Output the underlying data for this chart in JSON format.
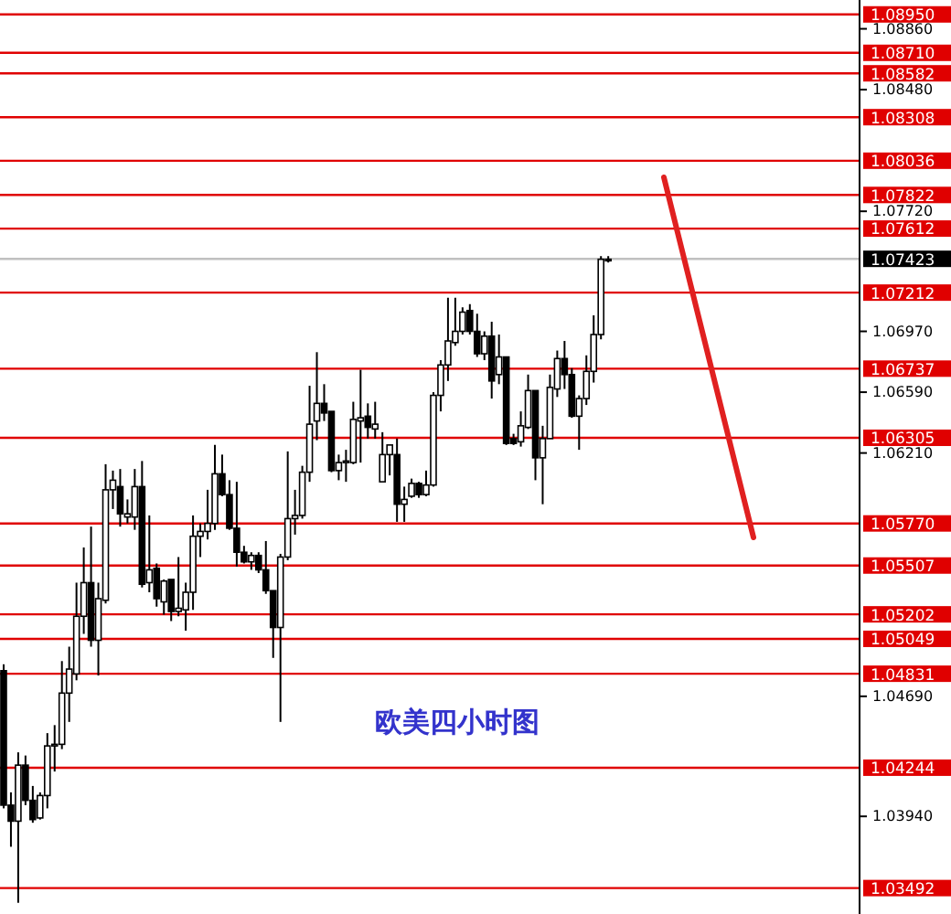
{
  "chart_data": {
    "type": "candlestick",
    "categories": [
      null,
      null,
      null,
      null,
      null,
      null,
      null,
      null,
      null,
      null,
      null,
      null,
      null,
      null,
      null,
      null,
      null,
      null,
      null,
      null,
      null,
      null,
      null,
      null,
      null,
      null,
      null,
      null,
      null,
      null,
      null,
      null,
      null,
      null,
      null,
      null,
      null,
      null,
      null,
      null,
      null,
      null,
      null,
      null,
      null,
      null,
      null,
      null,
      null,
      null,
      null,
      null,
      null,
      null,
      null,
      null,
      null,
      null,
      null,
      null,
      null,
      null,
      null,
      null,
      null,
      null,
      null,
      null,
      null,
      null,
      null,
      null,
      null,
      null,
      null,
      null,
      null,
      null,
      null,
      null,
      null,
      null,
      null,
      null,
      null,
      null,
      null,
      null,
      null,
      null,
      null,
      null,
      null,
      null,
      null,
      null,
      null,
      null,
      null,
      null,
      null,
      null,
      null,
      null,
      null,
      null,
      null,
      null,
      null,
      null,
      null,
      null,
      null,
      null,
      null,
      null,
      null,
      null
    ],
    "ohlc": [
      [
        1.0485,
        1.0489,
        1.0399,
        1.0401
      ],
      [
        1.0401,
        1.0409,
        1.0375,
        1.0391
      ],
      [
        1.0391,
        1.0434,
        1.034,
        1.0426
      ],
      [
        1.0426,
        1.0432,
        1.0401,
        1.0404
      ],
      [
        1.0404,
        1.0413,
        1.039,
        1.0392
      ],
      [
        1.0393,
        1.0409,
        1.0392,
        1.0407
      ],
      [
        1.0407,
        1.0446,
        1.0399,
        1.0438
      ],
      [
        1.0438,
        1.0451,
        1.0422,
        1.0439
      ],
      [
        1.0439,
        1.0491,
        1.0436,
        1.0471
      ],
      [
        1.0471,
        1.05,
        1.0453,
        1.0486
      ],
      [
        1.0483,
        1.054,
        1.0479,
        1.0519
      ],
      [
        1.0519,
        1.0562,
        1.0508,
        1.054
      ],
      [
        1.054,
        1.0575,
        1.05,
        1.0504
      ],
      [
        1.0504,
        1.054,
        1.0482,
        1.053
      ],
      [
        1.0529,
        1.0614,
        1.0527,
        1.0598
      ],
      [
        1.0598,
        1.061,
        1.0586,
        1.0604
      ],
      [
        1.06,
        1.0611,
        1.0575,
        1.0583
      ],
      [
        1.0581,
        1.0592,
        1.0577,
        1.0583
      ],
      [
        1.0581,
        1.0611,
        1.0573,
        1.06
      ],
      [
        1.06,
        1.0616,
        1.0537,
        1.0539
      ],
      [
        1.054,
        1.0582,
        1.0534,
        1.0548
      ],
      [
        1.0549,
        1.0552,
        1.0525,
        1.053
      ],
      [
        1.0528,
        1.0542,
        1.052,
        1.0541
      ],
      [
        1.0542,
        1.0542,
        1.0516,
        1.0522
      ],
      [
        1.0522,
        1.0556,
        1.0519,
        1.0524
      ],
      [
        1.0523,
        1.054,
        1.051,
        1.0534
      ],
      [
        1.0534,
        1.0582,
        1.0523,
        1.0569
      ],
      [
        1.0569,
        1.0577,
        1.0556,
        1.0572
      ],
      [
        1.0572,
        1.0598,
        1.0567,
        1.0577
      ],
      [
        1.0577,
        1.0626,
        1.0573,
        1.0608
      ],
      [
        1.0608,
        1.062,
        1.0594,
        1.0595
      ],
      [
        1.0595,
        1.0604,
        1.0573,
        1.0574
      ],
      [
        1.0574,
        1.0603,
        1.055,
        1.0559
      ],
      [
        1.0559,
        1.0563,
        1.0552,
        1.0553
      ],
      [
        1.0553,
        1.0559,
        1.0548,
        1.0557
      ],
      [
        1.0557,
        1.0559,
        1.0546,
        1.0548
      ],
      [
        1.0548,
        1.0566,
        1.0533,
        1.0535
      ],
      [
        1.0535,
        1.0535,
        1.0493,
        1.0512
      ],
      [
        1.0512,
        1.0558,
        1.0453,
        1.0556
      ],
      [
        1.0556,
        1.0622,
        1.0554,
        1.058
      ],
      [
        1.058,
        1.0598,
        1.057,
        1.0582
      ],
      [
        1.0582,
        1.0613,
        1.058,
        1.0609
      ],
      [
        1.0609,
        1.0663,
        1.0603,
        1.0639
      ],
      [
        1.0641,
        1.0684,
        1.0629,
        1.0652
      ],
      [
        1.0652,
        1.0664,
        1.0641,
        1.0646
      ],
      [
        1.0647,
        1.0647,
        1.0609,
        1.061
      ],
      [
        1.061,
        1.062,
        1.0604,
        1.0615
      ],
      [
        1.0615,
        1.0623,
        1.0603,
        1.0616
      ],
      [
        1.0615,
        1.0653,
        1.0614,
        1.0642
      ],
      [
        1.0641,
        1.0673,
        1.0615,
        1.0643
      ],
      [
        1.0644,
        1.0652,
        1.063,
        1.0637
      ],
      [
        1.0636,
        1.0653,
        1.063,
        1.0639
      ],
      [
        1.0603,
        1.0634,
        1.0603,
        1.062
      ],
      [
        1.062,
        1.0626,
        1.0607,
        1.0626
      ],
      [
        1.062,
        1.063,
        1.0578,
        1.0589
      ],
      [
        1.0589,
        1.06,
        1.0578,
        1.0592
      ],
      [
        1.0594,
        1.0605,
        1.0593,
        1.0602
      ],
      [
        1.0602,
        1.0603,
        1.0593,
        1.0595
      ],
      [
        1.0595,
        1.061,
        1.0594,
        1.0601
      ],
      [
        1.0601,
        1.0659,
        1.06,
        1.0657
      ],
      [
        1.0657,
        1.0679,
        1.0647,
        1.0676
      ],
      [
        1.0676,
        1.0718,
        1.0666,
        1.0691
      ],
      [
        1.069,
        1.0718,
        1.0688,
        1.0697
      ],
      [
        1.0697,
        1.0712,
        1.0695,
        1.0709
      ],
      [
        1.071,
        1.0714,
        1.0695,
        1.0697
      ],
      [
        1.0697,
        1.0708,
        1.0681,
        1.0683
      ],
      [
        1.0683,
        1.0697,
        1.0679,
        1.0694
      ],
      [
        1.0694,
        1.0703,
        1.0655,
        1.0666
      ],
      [
        1.067,
        1.0695,
        1.0664,
        1.0681
      ],
      [
        1.0681,
        1.0681,
        1.0626,
        1.0627
      ],
      [
        1.063,
        1.0633,
        1.0626,
        1.0627
      ],
      [
        1.0628,
        1.0647,
        1.0625,
        1.0638
      ],
      [
        1.0637,
        1.067,
        1.0636,
        1.066
      ],
      [
        1.066,
        1.066,
        1.0604,
        1.0618
      ],
      [
        1.0618,
        1.0638,
        1.0589,
        1.063
      ],
      [
        1.063,
        1.067,
        1.063,
        1.0662
      ],
      [
        1.0661,
        1.0685,
        1.0656,
        1.068
      ],
      [
        1.068,
        1.0691,
        1.0661,
        1.067
      ],
      [
        1.067,
        1.0674,
        1.0643,
        1.0644
      ],
      [
        1.0644,
        1.0657,
        1.0623,
        1.0655
      ],
      [
        1.0655,
        1.0682,
        1.0651,
        1.0672
      ],
      [
        1.0672,
        1.0707,
        1.0665,
        1.0695
      ],
      [
        1.0695,
        1.0744,
        1.0692,
        1.0742
      ],
      [
        1.0742,
        1.0744,
        1.074,
        1.0742
      ],
      null,
      null,
      null,
      null,
      null,
      null,
      null,
      null,
      null,
      null,
      null,
      null,
      null,
      null,
      null,
      null,
      null,
      null,
      null,
      null,
      null,
      null,
      null,
      null,
      null,
      null,
      null,
      null,
      null,
      null,
      null,
      null,
      null,
      null
    ],
    "ylim": [
      1.0333,
      1.0904
    ],
    "yticks": [
      {
        "value": 1.0886,
        "label": "1.08860"
      },
      {
        "value": 1.0848,
        "label": "1.08480"
      },
      {
        "value": 1.0772,
        "label": "1.07720"
      },
      {
        "value": 1.0697,
        "label": "1.06970"
      },
      {
        "value": 1.0659,
        "label": "1.06590"
      },
      {
        "value": 1.0621,
        "label": "1.06210"
      },
      {
        "value": 1.0469,
        "label": "1.04690"
      },
      {
        "value": 1.0394,
        "label": "1.03940"
      }
    ],
    "tick_labels": "y",
    "grid": false,
    "ref_lines": [
      {
        "axis": "y",
        "value": 1.0895,
        "label": "1.08950",
        "color": "#e00000"
      },
      {
        "axis": "y",
        "value": 1.0871,
        "label": "1.08710",
        "color": "#e00000"
      },
      {
        "axis": "y",
        "value": 1.08582,
        "label": "1.08582",
        "color": "#e00000"
      },
      {
        "axis": "y",
        "value": 1.08308,
        "label": "1.08308",
        "color": "#e00000"
      },
      {
        "axis": "y",
        "value": 1.08036,
        "label": "1.08036",
        "color": "#e00000"
      },
      {
        "axis": "y",
        "value": 1.07822,
        "label": "1.07822",
        "color": "#e00000"
      },
      {
        "axis": "y",
        "value": 1.07612,
        "label": "1.07612",
        "color": "#e00000"
      },
      {
        "axis": "y",
        "value": 1.07423,
        "label": "1.07423",
        "color": "#c0c0c0"
      },
      {
        "axis": "y",
        "value": 1.07212,
        "label": "1.07212",
        "color": "#e00000"
      },
      {
        "axis": "y",
        "value": 1.06737,
        "label": "1.06737",
        "color": "#e00000"
      },
      {
        "axis": "y",
        "value": 1.06305,
        "label": "1.06305",
        "color": "#e00000"
      },
      {
        "axis": "y",
        "value": 1.0577,
        "label": "1.05770",
        "color": "#e00000"
      },
      {
        "axis": "y",
        "value": 1.05507,
        "label": "1.05507",
        "color": "#e00000"
      },
      {
        "axis": "y",
        "value": 1.05202,
        "label": "1.05202",
        "color": "#e00000"
      },
      {
        "axis": "y",
        "value": 1.05049,
        "label": "1.05049",
        "color": "#e00000"
      },
      {
        "axis": "y",
        "value": 1.04831,
        "label": "1.04831",
        "color": "#e00000"
      },
      {
        "axis": "y",
        "value": 1.04244,
        "label": "1.04244",
        "color": "#e00000"
      },
      {
        "axis": "y",
        "value": 1.03492,
        "label": "1.03492",
        "color": "#e00000"
      }
    ],
    "annotations": [
      "欧美四小时图"
    ]
  }
}
